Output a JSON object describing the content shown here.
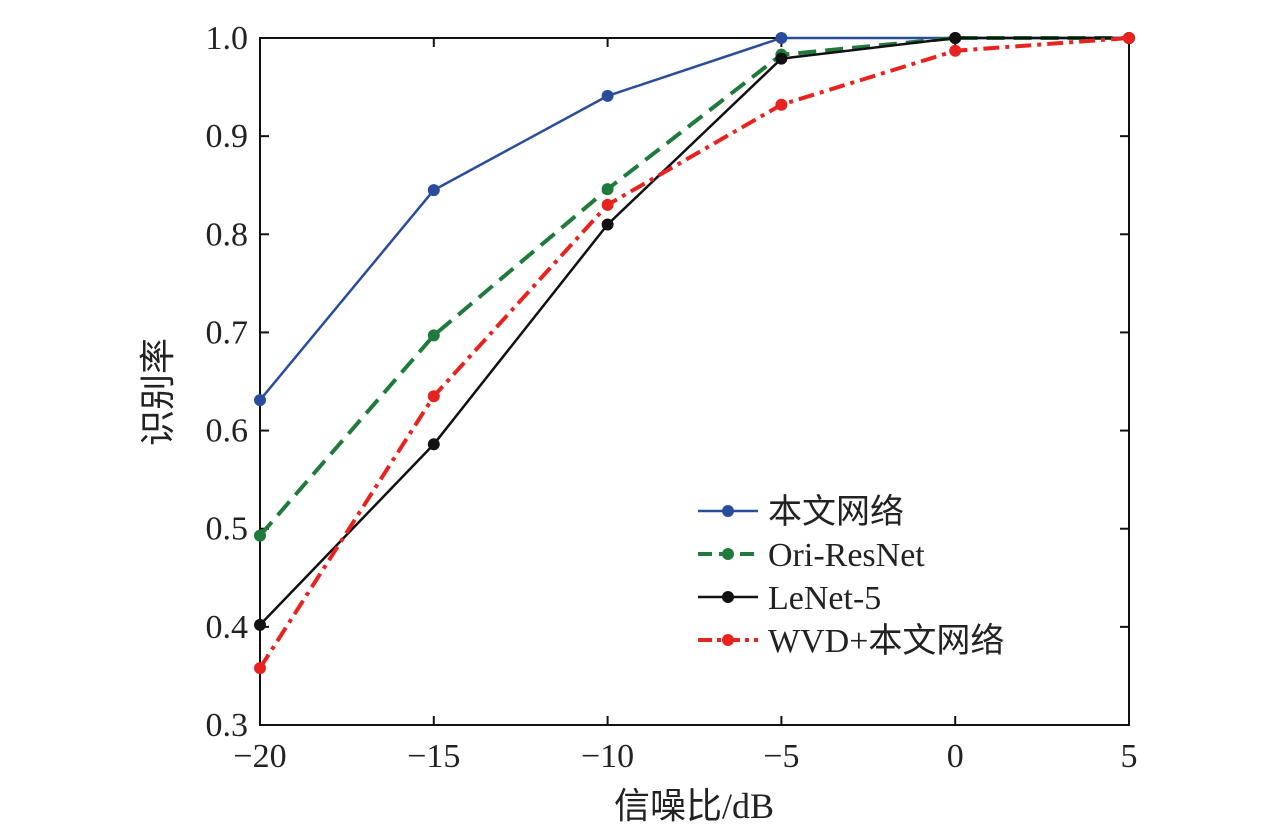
{
  "chart_data": {
    "type": "line",
    "title": "",
    "xlabel": "信噪比/dB",
    "ylabel": "识别率",
    "xlim": [
      -20,
      5
    ],
    "ylim": [
      0.3,
      1.0
    ],
    "x": [
      -20,
      -15,
      -10,
      -5,
      0,
      5
    ],
    "x_tick_labels": [
      "−20",
      "−15",
      "−10",
      "−5",
      "0",
      "5"
    ],
    "y_ticks": [
      0.3,
      0.4,
      0.5,
      0.6,
      0.7,
      0.8,
      0.9,
      1.0
    ],
    "y_tick_labels": [
      "0.3",
      "0.4",
      "0.5",
      "0.6",
      "0.7",
      "0.8",
      "0.9",
      "1.0"
    ],
    "grid": false,
    "legend_position": "lower-right",
    "series": [
      {
        "name": "本文网络",
        "color": "#2a4d9b",
        "dash": "solid",
        "values": [
          0.631,
          0.845,
          0.941,
          1.0,
          1.0,
          1.0
        ]
      },
      {
        "name": "Ori-ResNet",
        "color": "#1f7a3c",
        "dash": "dashed",
        "values": [
          0.493,
          0.697,
          0.846,
          0.983,
          1.0,
          1.0
        ]
      },
      {
        "name": "LeNet-5",
        "color": "#111111",
        "dash": "solid",
        "values": [
          0.402,
          0.586,
          0.81,
          0.979,
          1.0,
          1.0
        ]
      },
      {
        "name": "WVD+本文网络",
        "color": "#e8231f",
        "dash": "dashdot",
        "values": [
          0.358,
          0.635,
          0.83,
          0.932,
          0.987,
          1.0
        ]
      }
    ]
  }
}
